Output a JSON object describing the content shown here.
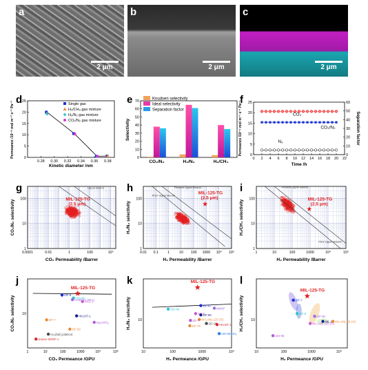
{
  "figure": {
    "panels": {
      "a": {
        "label": "a",
        "scale_bar": "2 μm"
      },
      "b": {
        "label": "b",
        "scale_bar": "2 μm"
      },
      "c": {
        "label": "c",
        "scale_bar": "2 μm"
      },
      "d": {
        "label": "d"
      },
      "e": {
        "label": "e"
      },
      "f": {
        "label": "f"
      },
      "g": {
        "label": "g"
      },
      "h": {
        "label": "h"
      },
      "i": {
        "label": "i"
      },
      "j": {
        "label": "j"
      },
      "k": {
        "label": "k"
      },
      "l": {
        "label": "l"
      }
    },
    "colors": {
      "red": "#e32020",
      "blue": "#1b2fd1",
      "magenta": "#d63ad6",
      "cyan": "#2ec4d0",
      "orange": "#e8893a",
      "black": "#111111"
    }
  },
  "chart_data": [
    {
      "panel": "d",
      "type": "scatter",
      "xlabel": "Kinetic diameter /nm",
      "ylabel": "Permeance /10⁻⁸ mol m⁻² s⁻¹ Pa⁻¹",
      "xlim": [
        0.26,
        0.39
      ],
      "ylim": [
        0,
        25
      ],
      "xticks": [
        "0.28",
        "0.30",
        "0.32",
        "0.34",
        "0.36",
        "0.38"
      ],
      "yticks": [
        "0",
        "5",
        "10",
        "15",
        "20",
        "25"
      ],
      "legend": [
        "Single gas",
        "H₂/CH₄ gas mixture",
        "H₂/N₂ gas mixture",
        "CO₂/N₂ gas mixture"
      ],
      "series": [
        {
          "name": "Single gas",
          "x": [
            0.289,
            0.33,
            0.364,
            0.38
          ],
          "y": [
            20.0,
            10.5,
            0.5,
            0.6
          ]
        },
        {
          "name": "H₂/CH₄ gas mixture",
          "x": [
            0.289,
            0.38
          ],
          "y": [
            19.5,
            0.6
          ]
        },
        {
          "name": "H₂/N₂ gas mixture",
          "x": [
            0.289,
            0.364
          ],
          "y": [
            19.2,
            0.5
          ]
        },
        {
          "name": "CO₂/N₂ gas mixture",
          "x": [
            0.33,
            0.364
          ],
          "y": [
            10.3,
            0.5
          ]
        }
      ]
    },
    {
      "panel": "e",
      "type": "bar",
      "ylabel": "Selectivity",
      "categories": [
        "CO₂/N₂",
        "H₂/N₂",
        "H₂/CH₄"
      ],
      "ylim": [
        0,
        70
      ],
      "yticks": [
        "0",
        "10",
        "20",
        "30",
        "40",
        "50",
        "60",
        "70"
      ],
      "legend": [
        "Knudsen selectivity",
        "Ideal selectivity",
        "Separation factor"
      ],
      "series": [
        {
          "name": "Knudsen selectivity",
          "values": [
            0.8,
            3.7,
            2.8
          ]
        },
        {
          "name": "Ideal selectivity",
          "values": [
            38,
            65,
            40
          ]
        },
        {
          "name": "Separation factor",
          "values": [
            36,
            61,
            35
          ]
        }
      ]
    },
    {
      "panel": "f",
      "type": "line",
      "xlabel": "Time /h",
      "ylabel": "Permeance /10⁻⁸ mol m⁻² s⁻¹ Pa⁻¹",
      "y2label": "Separation factor",
      "xlim": [
        0,
        22
      ],
      "ylim": [
        0,
        25
      ],
      "y2lim": [
        0,
        60
      ],
      "xticks": [
        "0",
        "2",
        "4",
        "6",
        "8",
        "10",
        "12",
        "14",
        "16",
        "18",
        "20",
        "22"
      ],
      "yticks": [
        "0",
        "5",
        "10",
        "15",
        "20",
        "25"
      ],
      "y2ticks": [
        "0",
        "10",
        "20",
        "30",
        "40",
        "50",
        "60"
      ],
      "annotations": [
        "CO₂",
        "CO₂/N₂",
        "N₂"
      ],
      "series": [
        {
          "name": "CO₂",
          "x": [
            2,
            3,
            4,
            5,
            6,
            7,
            8,
            9,
            10,
            11,
            12,
            13,
            14,
            15,
            16,
            17,
            18,
            19,
            20
          ],
          "y": [
            20.6,
            20.6,
            20.6,
            20.6,
            20.6,
            20.6,
            20.6,
            20.6,
            20.6,
            20.6,
            20.6,
            20.6,
            20.6,
            20.6,
            20.6,
            20.6,
            20.6,
            20.6,
            20.6
          ]
        },
        {
          "name": "CO₂/N₂",
          "x": [
            2,
            3,
            4,
            5,
            6,
            7,
            8,
            9,
            10,
            11,
            12,
            13,
            14,
            15,
            16,
            17,
            18,
            19,
            20
          ],
          "y": [
            15.4,
            15.4,
            15.4,
            15.4,
            15.4,
            15.4,
            15.4,
            15.4,
            15.4,
            15.4,
            15.4,
            15.4,
            15.4,
            15.4,
            15.4,
            15.4,
            15.4,
            15.4,
            15.4
          ]
        },
        {
          "name": "N₂",
          "x": [
            2,
            3,
            4,
            5,
            6,
            7,
            8,
            9,
            10,
            11,
            12,
            13,
            14,
            15,
            16,
            17,
            18,
            19,
            20
          ],
          "y": [
            2.2,
            2.2,
            2.2,
            2.2,
            2.2,
            2.2,
            2.2,
            2.2,
            2.2,
            2.2,
            2.2,
            2.2,
            2.2,
            2.2,
            2.2,
            2.2,
            2.2,
            2.2,
            2.2
          ]
        }
      ]
    },
    {
      "panel": "g",
      "type": "scatter",
      "xlabel": "CO₂ Permeability /Barrer",
      "ylabel": "CO₂/N₂ selectivity",
      "xscale": "log",
      "yscale": "log",
      "xticks": [
        "0.0001",
        "0.01",
        "1",
        "100",
        "10⁴"
      ],
      "yticks": [
        "1",
        "10",
        "100"
      ],
      "annotations": [
        "MIL-125-TG",
        "(2.5 μm)",
        "Upper Bound"
      ],
      "highlight": {
        "name": "MIL-125-TG",
        "x": 2.9,
        "y": 38
      }
    },
    {
      "panel": "h",
      "type": "scatter",
      "xlabel": "H₂ Permeability /Barrer",
      "ylabel": "H₂/N₂ selectivity",
      "xscale": "log",
      "yscale": "log",
      "xticks": [
        "0.01",
        "0.1",
        "1",
        "10",
        "100",
        "1000",
        "10⁴",
        "10⁵"
      ],
      "yticks": [
        "1",
        "10",
        "100"
      ],
      "annotations": [
        "MIL-125-TG",
        "(2.5 μm)",
        "Present Upper Bound",
        "Prior Upper Bound"
      ],
      "highlight": {
        "name": "MIL-125-TG",
        "x": 800,
        "y": 60
      }
    },
    {
      "panel": "i",
      "type": "scatter",
      "xlabel": "H₂ Permeability /Barrer",
      "ylabel": "H₂/CH₄ selectivity",
      "xscale": "log",
      "yscale": "log",
      "xticks": [
        "1",
        "10",
        "100",
        "1000",
        "10⁴",
        "10⁵"
      ],
      "yticks": [
        "1",
        "10",
        "100"
      ],
      "annotations": [
        "MIL-125-TG",
        "(2.5 μm)",
        "Present Upper Bound",
        "Prior Upper Bound"
      ],
      "highlight": {
        "name": "MIL-125-TG",
        "x": 900,
        "y": 38
      }
    },
    {
      "panel": "j",
      "type": "scatter",
      "xlabel": "CO₂ Permeance /GPU",
      "ylabel": "CO₂/N₂ selectivity",
      "xscale": "log",
      "yscale": "log",
      "xticks": [
        "1",
        "10",
        "100",
        "1000",
        "10⁴",
        "10⁵"
      ],
      "yticks": [
        "10"
      ],
      "points": [
        {
          "name": "MIL-125-TG",
          "x": 700,
          "y": 38
        },
        {
          "name": "ZIF-8",
          "x": 90,
          "y": 34
        },
        {
          "name": "UiO-66",
          "x": 400,
          "y": 28
        },
        {
          "name": "Cu(BDC)₂(NH₃)",
          "x": 350,
          "y": 25
        },
        {
          "name": "CAU-1",
          "x": 1300,
          "y": 22
        },
        {
          "name": "HKUST-1",
          "x": 600,
          "y": 8.5
        },
        {
          "name": "ZIF-7",
          "x": 12,
          "y": 6.5
        },
        {
          "name": "Ni₂(HTP)₃",
          "x": 6000,
          "y": 5.5
        },
        {
          "name": "ZIF-69",
          "x": 250,
          "y": 3.5
        },
        {
          "name": "Cu₂(bdc)₂(dabco)",
          "x": 15,
          "y": 2.5
        },
        {
          "name": "anionic-ZMOF-1",
          "x": 3,
          "y": 1.8
        }
      ]
    },
    {
      "panel": "k",
      "type": "scatter",
      "xlabel": "H₂ Permeance /GPU",
      "ylabel": "H₂/N₂ selectivity",
      "xscale": "log",
      "yscale": "log",
      "xticks": [
        "10",
        "100",
        "1000",
        "10⁴"
      ],
      "yticks": [
        "10"
      ],
      "points": [
        {
          "name": "MIL-125-TG",
          "x": 700,
          "y": 62
        },
        {
          "name": "ZIF-67",
          "x": 900,
          "y": 22
        },
        {
          "name": "UiO-66",
          "x": 70,
          "y": 18
        },
        {
          "name": "MMOF",
          "x": 2600,
          "y": 19
        },
        {
          "name": "ZIF-8",
          "x": 600,
          "y": 14
        },
        {
          "name": "ZIF-90",
          "x": 900,
          "y": 13
        },
        {
          "name": "NH₂-MIL-125 (Ti)",
          "x": 800,
          "y": 10
        },
        {
          "name": "ZIF-7",
          "x": 400,
          "y": 9.5
        },
        {
          "name": "ZIF-78",
          "x": 380,
          "y": 7
        },
        {
          "name": "ZIF-95",
          "x": 1400,
          "y": 8
        },
        {
          "name": "HKUST-1",
          "x": 3200,
          "y": 7.5
        },
        {
          "name": "UiO-66-NH₂",
          "x": 3800,
          "y": 4.5
        }
      ]
    },
    {
      "panel": "l",
      "type": "scatter",
      "xlabel": "H₂ Permeance /GPU",
      "ylabel": "H₂/CH₄ selectivity",
      "xscale": "log",
      "yscale": "log",
      "xticks": [
        "10",
        "100",
        "1000",
        "10⁴"
      ],
      "yticks": [
        "10"
      ],
      "points": [
        {
          "name": "MIL-125-TG",
          "x": 700,
          "y": 38
        },
        {
          "name": "ZIF-7",
          "x": 220,
          "y": 30
        },
        {
          "name": "ZIF-8",
          "x": 300,
          "y": 14
        },
        {
          "name": "ZIF-90",
          "x": 1300,
          "y": 12
        },
        {
          "name": "NH₂-MIL-125 (Ti)",
          "x": 900,
          "y": 8
        },
        {
          "name": "MIL-96",
          "x": 2600,
          "y": 9
        },
        {
          "name": "NH₂-MIL-53 (Al)",
          "x": 6000,
          "y": 9
        },
        {
          "name": "UiO-66",
          "x": 40,
          "y": 4
        }
      ]
    }
  ]
}
